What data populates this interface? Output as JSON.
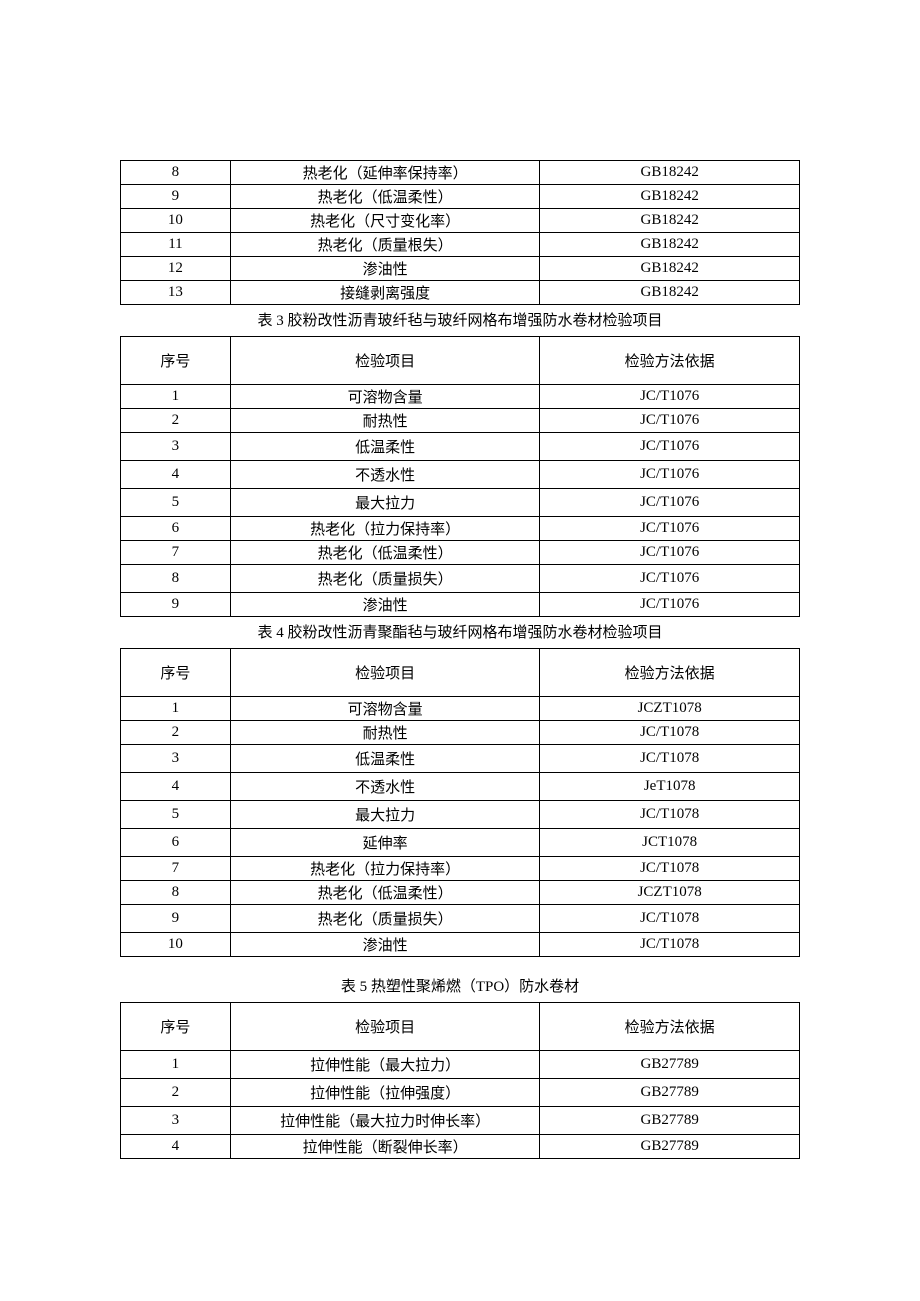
{
  "table2_partial": {
    "rows": [
      {
        "idx": "8",
        "item": "热老化（延伸率保持率）",
        "method": "GB18242"
      },
      {
        "idx": "9",
        "item": "热老化（低温柔性）",
        "method": "GB18242"
      },
      {
        "idx": "10",
        "item": "热老化（尺寸变化率）",
        "method": "GB18242"
      },
      {
        "idx": "11",
        "item": "热老化（质量根失）",
        "method": "GB18242"
      },
      {
        "idx": "12",
        "item": "渗油性",
        "method": "GB18242"
      },
      {
        "idx": "13",
        "item": "接缝剥离强度",
        "method": "GB18242"
      }
    ]
  },
  "table3": {
    "caption": "表 3 胶粉改性沥青玻纤毡与玻纤网格布增强防水卷材检验项目",
    "headers": {
      "idx": "序号",
      "item": "检验项目",
      "method": "检验方法依据"
    },
    "rows": [
      {
        "idx": "1",
        "item": "可溶物含量",
        "method": "JC/T1076"
      },
      {
        "idx": "2",
        "item": "耐热性",
        "method": "JC/T1076"
      },
      {
        "idx": "3",
        "item": "低温柔性",
        "method": "JC/T1076"
      },
      {
        "idx": "4",
        "item": "不透水性",
        "method": "JC/T1076"
      },
      {
        "idx": "5",
        "item": "最大拉力",
        "method": "JC/T1076"
      },
      {
        "idx": "6",
        "item": "热老化（拉力保持率）",
        "method": "JC/T1076"
      },
      {
        "idx": "7",
        "item": "热老化（低温柔性）",
        "method": "JC/T1076"
      },
      {
        "idx": "8",
        "item": "热老化（质量损失）",
        "method": "JC/T1076"
      },
      {
        "idx": "9",
        "item": "渗油性",
        "method": "JC/T1076"
      }
    ]
  },
  "table4": {
    "caption": "表 4 胶粉改性沥青聚酯毡与玻纤网格布增强防水卷材检验项目",
    "headers": {
      "idx": "序号",
      "item": "检验项目",
      "method": "检验方法依据"
    },
    "rows": [
      {
        "idx": "1",
        "item": "可溶物含量",
        "method": "JCZT1078"
      },
      {
        "idx": "2",
        "item": "耐热性",
        "method": "JC/T1078"
      },
      {
        "idx": "3",
        "item": "低温柔性",
        "method": "JC/T1078"
      },
      {
        "idx": "4",
        "item": "不透水性",
        "method": "JeT1078"
      },
      {
        "idx": "5",
        "item": "最大拉力",
        "method": "JC/T1078"
      },
      {
        "idx": "6",
        "item": "延伸率",
        "method": "JCT1078"
      },
      {
        "idx": "7",
        "item": "热老化（拉力保持率）",
        "method": "JC/T1078"
      },
      {
        "idx": "8",
        "item": "热老化（低温柔性）",
        "method": "JCZT1078"
      },
      {
        "idx": "9",
        "item": "热老化（质量损失）",
        "method": "JC/T1078"
      },
      {
        "idx": "10",
        "item": "渗油性",
        "method": "JC/T1078"
      }
    ]
  },
  "table5": {
    "caption": "表 5 热塑性聚烯燃（TPO）防水卷材",
    "headers": {
      "idx": "序号",
      "item": "检验项目",
      "method": "检验方法依据"
    },
    "rows": [
      {
        "idx": "1",
        "item": "拉伸性能（最大拉力）",
        "method": "GB27789"
      },
      {
        "idx": "2",
        "item": "拉伸性能（拉伸强度）",
        "method": "GB27789"
      },
      {
        "idx": "3",
        "item": "拉伸性能（最大拉力时伸长率）",
        "method": "GB27789"
      },
      {
        "idx": "4",
        "item": "拉伸性能（断裂伸长率）",
        "method": "GB27789"
      }
    ]
  }
}
